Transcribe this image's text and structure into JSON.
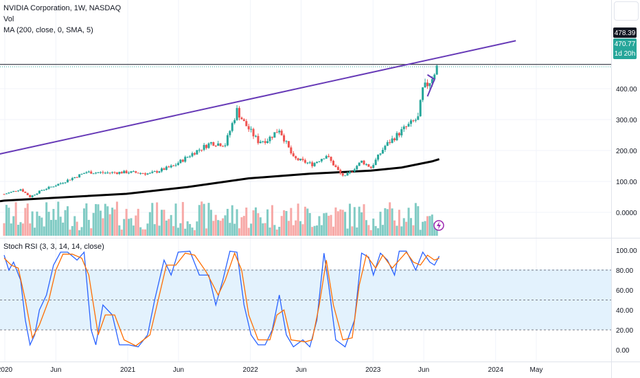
{
  "header": {
    "symbol_line": "NVIDIA Corporation, 1W, NASDAQ",
    "vol_label": "Vol",
    "ma_label": "MA (200, close, 0, SMA, 5)"
  },
  "rsi_header": {
    "label": "Stoch RSI (3, 3, 14, 14, close)"
  },
  "price_tags": {
    "line_level": "478.39",
    "last_price": "470.77",
    "countdown": "1d 20h"
  },
  "colors": {
    "up": "#26a69a",
    "down": "#ef5350",
    "vol_up": "#80cbc4",
    "vol_down": "#f7a9a7",
    "trendline": "#673ab7",
    "ma": "#000000",
    "k_line": "#2962ff",
    "d_line": "#ff6d00",
    "rsi_band": "#e3f2fd"
  },
  "chart_data": [
    {
      "type": "candlestick",
      "title": "NVIDIA Corporation, 1W, NASDAQ",
      "interval": "1W",
      "x_tick_labels": [
        "2020",
        "Jun",
        "2021",
        "Jun",
        "2022",
        "Jun",
        "2023",
        "Jun",
        "2024",
        "May"
      ],
      "y_tick_labels": [
        "400.00",
        "300.00",
        "200.00",
        "100.00",
        "0.0000"
      ],
      "ylim": [
        -50,
        540
      ],
      "last_price": 470.77,
      "horizontal_level": 478.39,
      "close_anchors": [
        {
          "date": "2019-12-30",
          "close": 59
        },
        {
          "date": "2020-02-17",
          "close": 75
        },
        {
          "date": "2020-03-16",
          "close": 50
        },
        {
          "date": "2020-04-20",
          "close": 72
        },
        {
          "date": "2020-06-01",
          "close": 88
        },
        {
          "date": "2020-08-31",
          "close": 130
        },
        {
          "date": "2020-10-26",
          "close": 128
        },
        {
          "date": "2021-01-04",
          "close": 130
        },
        {
          "date": "2021-03-08",
          "close": 125
        },
        {
          "date": "2021-05-17",
          "close": 150
        },
        {
          "date": "2021-07-19",
          "close": 195
        },
        {
          "date": "2021-09-06",
          "close": 225
        },
        {
          "date": "2021-10-18",
          "close": 220
        },
        {
          "date": "2021-11-22",
          "close": 330
        },
        {
          "date": "2021-12-13",
          "close": 290
        },
        {
          "date": "2022-01-24",
          "close": 230
        },
        {
          "date": "2022-02-21",
          "close": 235
        },
        {
          "date": "2022-03-28",
          "close": 270
        },
        {
          "date": "2022-05-09",
          "close": 175
        },
        {
          "date": "2022-07-04",
          "close": 155
        },
        {
          "date": "2022-08-15",
          "close": 185
        },
        {
          "date": "2022-09-26",
          "close": 125
        },
        {
          "date": "2022-10-10",
          "close": 115
        },
        {
          "date": "2022-11-28",
          "close": 165
        },
        {
          "date": "2022-12-26",
          "close": 145
        },
        {
          "date": "2023-02-06",
          "close": 215
        },
        {
          "date": "2023-04-03",
          "close": 270
        },
        {
          "date": "2023-05-15",
          "close": 305
        },
        {
          "date": "2023-05-29",
          "close": 395
        },
        {
          "date": "2023-06-19",
          "close": 425
        },
        {
          "date": "2023-07-10",
          "close": 470
        }
      ],
      "ma200_points": [
        {
          "date": "2019-12-30",
          "value": 38
        },
        {
          "date": "2020-12-28",
          "value": 60
        },
        {
          "date": "2021-06-28",
          "value": 82
        },
        {
          "date": "2021-12-27",
          "value": 110
        },
        {
          "date": "2022-06-27",
          "value": 125
        },
        {
          "date": "2022-12-26",
          "value": 135
        },
        {
          "date": "2023-03-27",
          "value": 145
        },
        {
          "date": "2023-06-26",
          "value": 165
        },
        {
          "date": "2023-07-17",
          "value": 172
        }
      ],
      "trendline": [
        {
          "date": "2019-12-01",
          "value": 185
        },
        {
          "date": "2024-03-01",
          "value": 555
        }
      ],
      "pennant": [
        {
          "date": "2023-06-12",
          "value": 445
        },
        {
          "date": "2023-07-03",
          "value": 430
        },
        {
          "date": "2023-06-12",
          "value": 375
        }
      ]
    },
    {
      "type": "line",
      "title": "Stoch RSI (3, 3, 14, 14, close)",
      "y_tick_labels": [
        "100.00",
        "80.00",
        "60.00",
        "40.00",
        "20.00",
        "0.00"
      ],
      "ylim": [
        -3,
        103
      ],
      "bands": [
        80,
        50,
        20
      ],
      "series": [
        {
          "name": "K",
          "points": [
            {
              "date": "2019-12-30",
              "value": 95
            },
            {
              "date": "2020-01-13",
              "value": 80
            },
            {
              "date": "2020-01-27",
              "value": 88
            },
            {
              "date": "2020-02-17",
              "value": 70
            },
            {
              "date": "2020-03-02",
              "value": 30
            },
            {
              "date": "2020-03-16",
              "value": 5
            },
            {
              "date": "2020-03-30",
              "value": 15
            },
            {
              "date": "2020-04-13",
              "value": 40
            },
            {
              "date": "2020-05-04",
              "value": 55
            },
            {
              "date": "2020-05-25",
              "value": 85
            },
            {
              "date": "2020-06-15",
              "value": 98
            },
            {
              "date": "2020-07-06",
              "value": 98
            },
            {
              "date": "2020-08-03",
              "value": 90
            },
            {
              "date": "2020-08-24",
              "value": 98
            },
            {
              "date": "2020-09-14",
              "value": 20
            },
            {
              "date": "2020-09-28",
              "value": 5
            },
            {
              "date": "2020-10-19",
              "value": 45
            },
            {
              "date": "2020-11-16",
              "value": 35
            },
            {
              "date": "2020-12-07",
              "value": 5
            },
            {
              "date": "2021-01-04",
              "value": 5
            },
            {
              "date": "2021-02-01",
              "value": 3
            },
            {
              "date": "2021-03-01",
              "value": 15
            },
            {
              "date": "2021-03-22",
              "value": 50
            },
            {
              "date": "2021-04-19",
              "value": 90
            },
            {
              "date": "2021-05-10",
              "value": 75
            },
            {
              "date": "2021-05-31",
              "value": 98
            },
            {
              "date": "2021-07-05",
              "value": 99
            },
            {
              "date": "2021-08-02",
              "value": 75
            },
            {
              "date": "2021-08-30",
              "value": 75
            },
            {
              "date": "2021-09-20",
              "value": 45
            },
            {
              "date": "2021-10-11",
              "value": 70
            },
            {
              "date": "2021-11-01",
              "value": 99
            },
            {
              "date": "2021-11-22",
              "value": 98
            },
            {
              "date": "2021-12-13",
              "value": 45
            },
            {
              "date": "2022-01-03",
              "value": 15
            },
            {
              "date": "2022-01-24",
              "value": 5
            },
            {
              "date": "2022-02-14",
              "value": 5
            },
            {
              "date": "2022-03-07",
              "value": 20
            },
            {
              "date": "2022-03-28",
              "value": 55
            },
            {
              "date": "2022-04-18",
              "value": 15
            },
            {
              "date": "2022-05-09",
              "value": 3
            },
            {
              "date": "2022-06-06",
              "value": 10
            },
            {
              "date": "2022-06-27",
              "value": 3
            },
            {
              "date": "2022-07-18",
              "value": 30
            },
            {
              "date": "2022-08-08",
              "value": 97
            },
            {
              "date": "2022-08-22",
              "value": 65
            },
            {
              "date": "2022-09-12",
              "value": 10
            },
            {
              "date": "2022-10-10",
              "value": 3
            },
            {
              "date": "2022-11-07",
              "value": 30
            },
            {
              "date": "2022-11-28",
              "value": 97
            },
            {
              "date": "2022-12-19",
              "value": 93
            },
            {
              "date": "2023-01-02",
              "value": 75
            },
            {
              "date": "2023-01-23",
              "value": 97
            },
            {
              "date": "2023-02-13",
              "value": 90
            },
            {
              "date": "2023-03-06",
              "value": 75
            },
            {
              "date": "2023-03-20",
              "value": 99
            },
            {
              "date": "2023-04-10",
              "value": 99
            },
            {
              "date": "2023-04-24",
              "value": 90
            },
            {
              "date": "2023-05-08",
              "value": 80
            },
            {
              "date": "2023-05-29",
              "value": 98
            },
            {
              "date": "2023-06-19",
              "value": 88
            },
            {
              "date": "2023-07-03",
              "value": 85
            },
            {
              "date": "2023-07-17",
              "value": 94
            }
          ]
        },
        {
          "name": "D",
          "points": [
            {
              "date": "2019-12-30",
              "value": 92
            },
            {
              "date": "2020-01-20",
              "value": 85
            },
            {
              "date": "2020-02-10",
              "value": 82
            },
            {
              "date": "2020-03-02",
              "value": 50
            },
            {
              "date": "2020-03-23",
              "value": 12
            },
            {
              "date": "2020-04-13",
              "value": 25
            },
            {
              "date": "2020-05-11",
              "value": 50
            },
            {
              "date": "2020-06-01",
              "value": 80
            },
            {
              "date": "2020-06-22",
              "value": 96
            },
            {
              "date": "2020-07-20",
              "value": 96
            },
            {
              "date": "2020-08-17",
              "value": 92
            },
            {
              "date": "2020-09-07",
              "value": 75
            },
            {
              "date": "2020-10-05",
              "value": 15
            },
            {
              "date": "2020-10-26",
              "value": 35
            },
            {
              "date": "2020-11-23",
              "value": 35
            },
            {
              "date": "2020-12-21",
              "value": 10
            },
            {
              "date": "2021-01-25",
              "value": 4
            },
            {
              "date": "2021-03-08",
              "value": 15
            },
            {
              "date": "2021-04-05",
              "value": 55
            },
            {
              "date": "2021-04-26",
              "value": 85
            },
            {
              "date": "2021-05-24",
              "value": 85
            },
            {
              "date": "2021-06-21",
              "value": 97
            },
            {
              "date": "2021-07-19",
              "value": 95
            },
            {
              "date": "2021-08-23",
              "value": 78
            },
            {
              "date": "2021-09-27",
              "value": 55
            },
            {
              "date": "2021-10-18",
              "value": 70
            },
            {
              "date": "2021-11-15",
              "value": 97
            },
            {
              "date": "2021-12-06",
              "value": 80
            },
            {
              "date": "2021-12-27",
              "value": 35
            },
            {
              "date": "2022-01-24",
              "value": 10
            },
            {
              "date": "2022-02-28",
              "value": 10
            },
            {
              "date": "2022-03-21",
              "value": 35
            },
            {
              "date": "2022-04-11",
              "value": 40
            },
            {
              "date": "2022-05-02",
              "value": 10
            },
            {
              "date": "2022-06-13",
              "value": 8
            },
            {
              "date": "2022-07-04",
              "value": 10
            },
            {
              "date": "2022-07-25",
              "value": 45
            },
            {
              "date": "2022-08-15",
              "value": 90
            },
            {
              "date": "2022-09-05",
              "value": 45
            },
            {
              "date": "2022-10-03",
              "value": 10
            },
            {
              "date": "2022-10-31",
              "value": 12
            },
            {
              "date": "2022-11-21",
              "value": 65
            },
            {
              "date": "2022-12-12",
              "value": 95
            },
            {
              "date": "2023-01-09",
              "value": 82
            },
            {
              "date": "2023-01-30",
              "value": 95
            },
            {
              "date": "2023-02-27",
              "value": 82
            },
            {
              "date": "2023-03-20",
              "value": 90
            },
            {
              "date": "2023-04-10",
              "value": 98
            },
            {
              "date": "2023-05-01",
              "value": 88
            },
            {
              "date": "2023-05-22",
              "value": 85
            },
            {
              "date": "2023-06-12",
              "value": 95
            },
            {
              "date": "2023-07-03",
              "value": 90
            },
            {
              "date": "2023-07-17",
              "value": 92
            }
          ]
        }
      ]
    }
  ]
}
